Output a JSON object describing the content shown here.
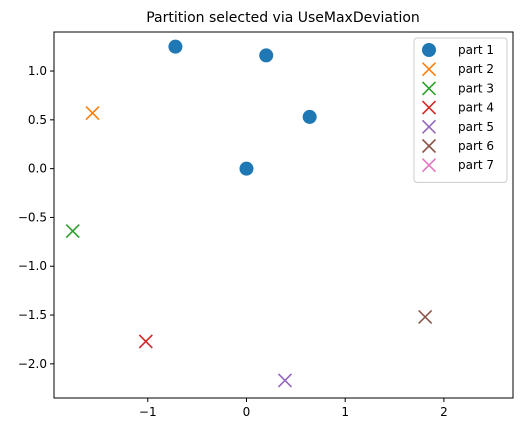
{
  "chart_data": {
    "type": "scatter",
    "title": "Partition selected via UseMaxDeviation",
    "xlabel": "",
    "ylabel": "",
    "xlim": [
      -1.95,
      2.7
    ],
    "ylim": [
      -2.35,
      1.4
    ],
    "x_ticks": [
      -1,
      0,
      1,
      2
    ],
    "x_tick_labels": [
      "−1",
      "0",
      "1",
      "2"
    ],
    "y_ticks": [
      -2.0,
      -1.5,
      -1.0,
      -0.5,
      0.0,
      0.5,
      1.0
    ],
    "y_tick_labels": [
      "−2.0",
      "−1.5",
      "−1.0",
      "−0.5",
      "0.0",
      "0.5",
      "1.0"
    ],
    "grid": false,
    "legend_position": "top-right",
    "series": [
      {
        "name": "part 1",
        "marker": "circle",
        "color": "#1f77b4",
        "points": [
          [
            -0.72,
            1.25
          ],
          [
            0.2,
            1.16
          ],
          [
            0.64,
            0.53
          ],
          [
            0.0,
            0.0
          ]
        ]
      },
      {
        "name": "part 2",
        "marker": "x",
        "color": "#ff7f0e",
        "points": [
          [
            -1.56,
            0.57
          ]
        ]
      },
      {
        "name": "part 3",
        "marker": "x",
        "color": "#2ca02c",
        "points": [
          [
            -1.76,
            -0.64
          ]
        ]
      },
      {
        "name": "part 4",
        "marker": "x",
        "color": "#d62728",
        "points": [
          [
            -1.02,
            -1.77
          ]
        ]
      },
      {
        "name": "part 5",
        "marker": "x",
        "color": "#9467bd",
        "points": [
          [
            0.39,
            -2.17
          ]
        ]
      },
      {
        "name": "part 6",
        "marker": "x",
        "color": "#8c564b",
        "points": [
          [
            1.81,
            -1.52
          ]
        ]
      },
      {
        "name": "part 7",
        "marker": "x",
        "color": "#e377c2",
        "points": []
      }
    ]
  }
}
